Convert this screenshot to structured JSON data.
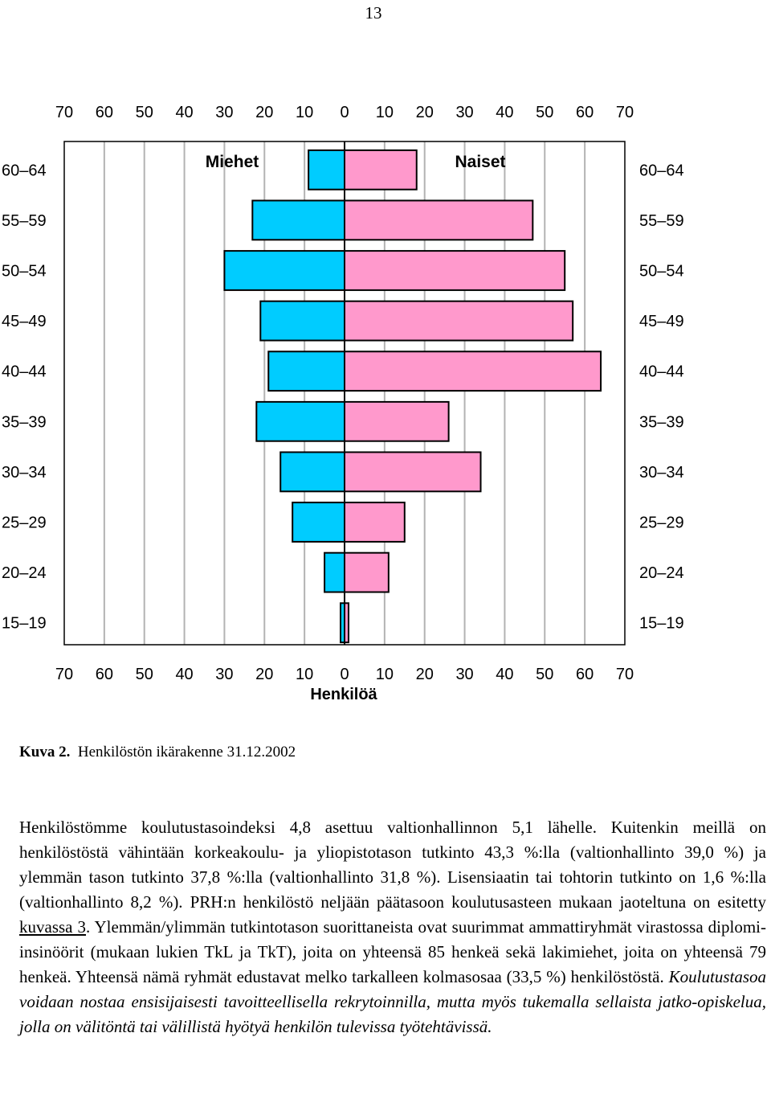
{
  "page_number": "13",
  "chart_data": {
    "type": "bar",
    "subtype": "population-pyramid",
    "categories": [
      "15–19",
      "20–24",
      "25–29",
      "30–34",
      "35–39",
      "40–44",
      "45–49",
      "50–54",
      "55–59",
      "60–64"
    ],
    "series": [
      {
        "name": "Miehet",
        "values": [
          1,
          5,
          13,
          16,
          22,
          19,
          21,
          30,
          23,
          9
        ],
        "color": "#00ccff"
      },
      {
        "name": "Naiset",
        "values": [
          1,
          11,
          15,
          34,
          26,
          64,
          57,
          55,
          47,
          18
        ],
        "color": "#ff99cc"
      }
    ],
    "xlim": [
      -70,
      70
    ],
    "x_ticks": [
      "70",
      "60",
      "50",
      "40",
      "30",
      "20",
      "10",
      "0",
      "10",
      "20",
      "30",
      "40",
      "50",
      "60",
      "70"
    ],
    "xlabel": "Henkilöä",
    "left_title": "Miehet",
    "right_title": "Naiset",
    "grid": true
  },
  "caption": {
    "label": "Kuva 2.",
    "text": "Henkilöstön ikärakenne 31.12.2002"
  },
  "paragraph": {
    "part1": "Henkilöstömme koulutustasoindeksi 4,8 asettuu valtionhallinnon 5,1 lähelle. Kuitenkin meillä on henkilöstöstä vähintään korkeakoulu- ja yliopistotason tutkinto 43,3 %:lla (valtionhallinto 39,0 %) ja ylemmän tason tutkinto 37,8 %:lla (valtionhallinto 31,8 %). Lisensiaatin tai tohtorin tutkinto on 1,6 %:lla (valtionhallinto 8,2 %). PRH:n henkilöstö neljään päätasoon koulutusasteen mukaan jaoteltuna on esitetty ",
    "link": "kuvassa 3",
    "part2": ". Ylemmän/ylimmän tutkintotason suorittaneista ovat suurimmat ammattiryhmät virastossa diplomi-insinöörit (mukaan lukien TkL ja TkT), joita on yhteensä 85 henkeä sekä lakimiehet, joita on yhteensä 79 henkeä. Yhteensä nämä ryhmät edustavat melko tarkalleen kolmasosaa (33,5 %) henkilöstöstä. ",
    "italic": "Koulutustasoa voidaan nostaa ensisijaisesti tavoitteellisella rekrytoinnilla, mutta myös tukemalla sellaista jatko-opiskelua, jolla on välitöntä tai välillistä hyötyä henkilön tulevissa työtehtävissä."
  }
}
